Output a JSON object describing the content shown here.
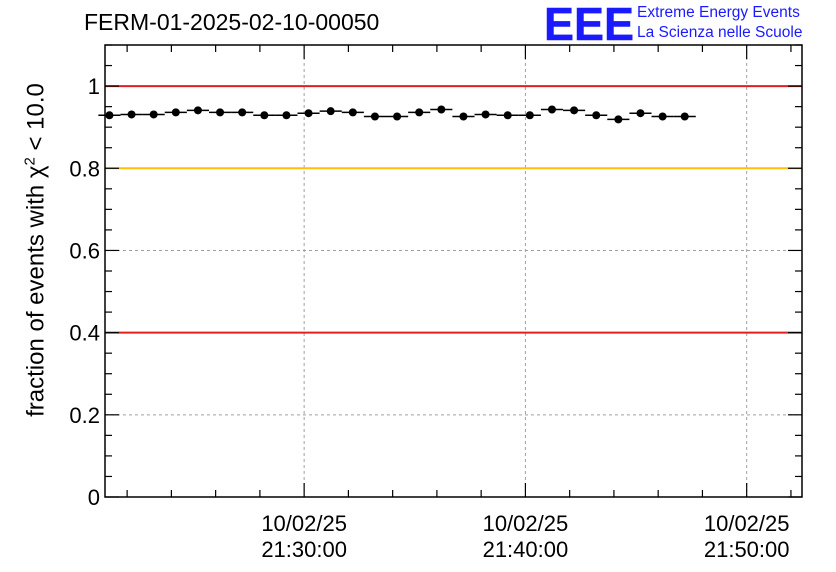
{
  "chart_data": {
    "type": "scatter",
    "title": "FERM-01-2025-02-10-00050",
    "logo": {
      "text": "EEE",
      "line1": "Extreme Energy Events",
      "line2": "La Scienza nelle Scuole"
    },
    "ylabel": {
      "prefix": "fraction of events with ",
      "symbol": "χ",
      "power": "2",
      "suffix": " < 10.0"
    },
    "xlabel": "",
    "x_unit": "minutes",
    "xlim": [
      21.0,
      52.5
    ],
    "ylim": [
      0,
      1.1
    ],
    "x_ticks": [
      {
        "x": 30,
        "date": "10/02/25",
        "time": "21:30:00"
      },
      {
        "x": 40,
        "date": "10/02/25",
        "time": "21:40:00"
      },
      {
        "x": 50,
        "date": "10/02/25",
        "time": "21:50:00"
      }
    ],
    "y_ticks": [
      {
        "y": 0,
        "label": "0"
      },
      {
        "y": 0.2,
        "label": "0.2"
      },
      {
        "y": 0.4,
        "label": "0.4"
      },
      {
        "y": 0.6,
        "label": "0.6"
      },
      {
        "y": 0.8,
        "label": "0.8"
      },
      {
        "y": 1.0,
        "label": "1"
      }
    ],
    "grid": true,
    "reference_lines": [
      {
        "y": 1.0,
        "color": "#e02020"
      },
      {
        "y": 0.8,
        "color": "#ffc107"
      },
      {
        "y": 0.4,
        "color": "#e02020"
      }
    ],
    "series": [
      {
        "marker_color": "#000000",
        "points": [
          {
            "x": 21.2,
            "y": 0.929
          },
          {
            "x": 22.2,
            "y": 0.931
          },
          {
            "x": 23.2,
            "y": 0.931
          },
          {
            "x": 24.2,
            "y": 0.936
          },
          {
            "x": 25.2,
            "y": 0.941
          },
          {
            "x": 26.2,
            "y": 0.936
          },
          {
            "x": 27.2,
            "y": 0.936
          },
          {
            "x": 28.2,
            "y": 0.929
          },
          {
            "x": 29.2,
            "y": 0.929
          },
          {
            "x": 30.2,
            "y": 0.934
          },
          {
            "x": 31.2,
            "y": 0.939
          },
          {
            "x": 32.2,
            "y": 0.936
          },
          {
            "x": 33.2,
            "y": 0.926
          },
          {
            "x": 34.2,
            "y": 0.926
          },
          {
            "x": 35.2,
            "y": 0.936
          },
          {
            "x": 36.2,
            "y": 0.943
          },
          {
            "x": 37.2,
            "y": 0.926
          },
          {
            "x": 38.2,
            "y": 0.931
          },
          {
            "x": 39.2,
            "y": 0.929
          },
          {
            "x": 40.2,
            "y": 0.929
          },
          {
            "x": 41.2,
            "y": 0.943
          },
          {
            "x": 42.2,
            "y": 0.941
          },
          {
            "x": 43.2,
            "y": 0.929
          },
          {
            "x": 44.2,
            "y": 0.919
          },
          {
            "x": 45.2,
            "y": 0.934
          },
          {
            "x": 46.2,
            "y": 0.926
          },
          {
            "x": 47.2,
            "y": 0.926
          }
        ]
      }
    ]
  }
}
